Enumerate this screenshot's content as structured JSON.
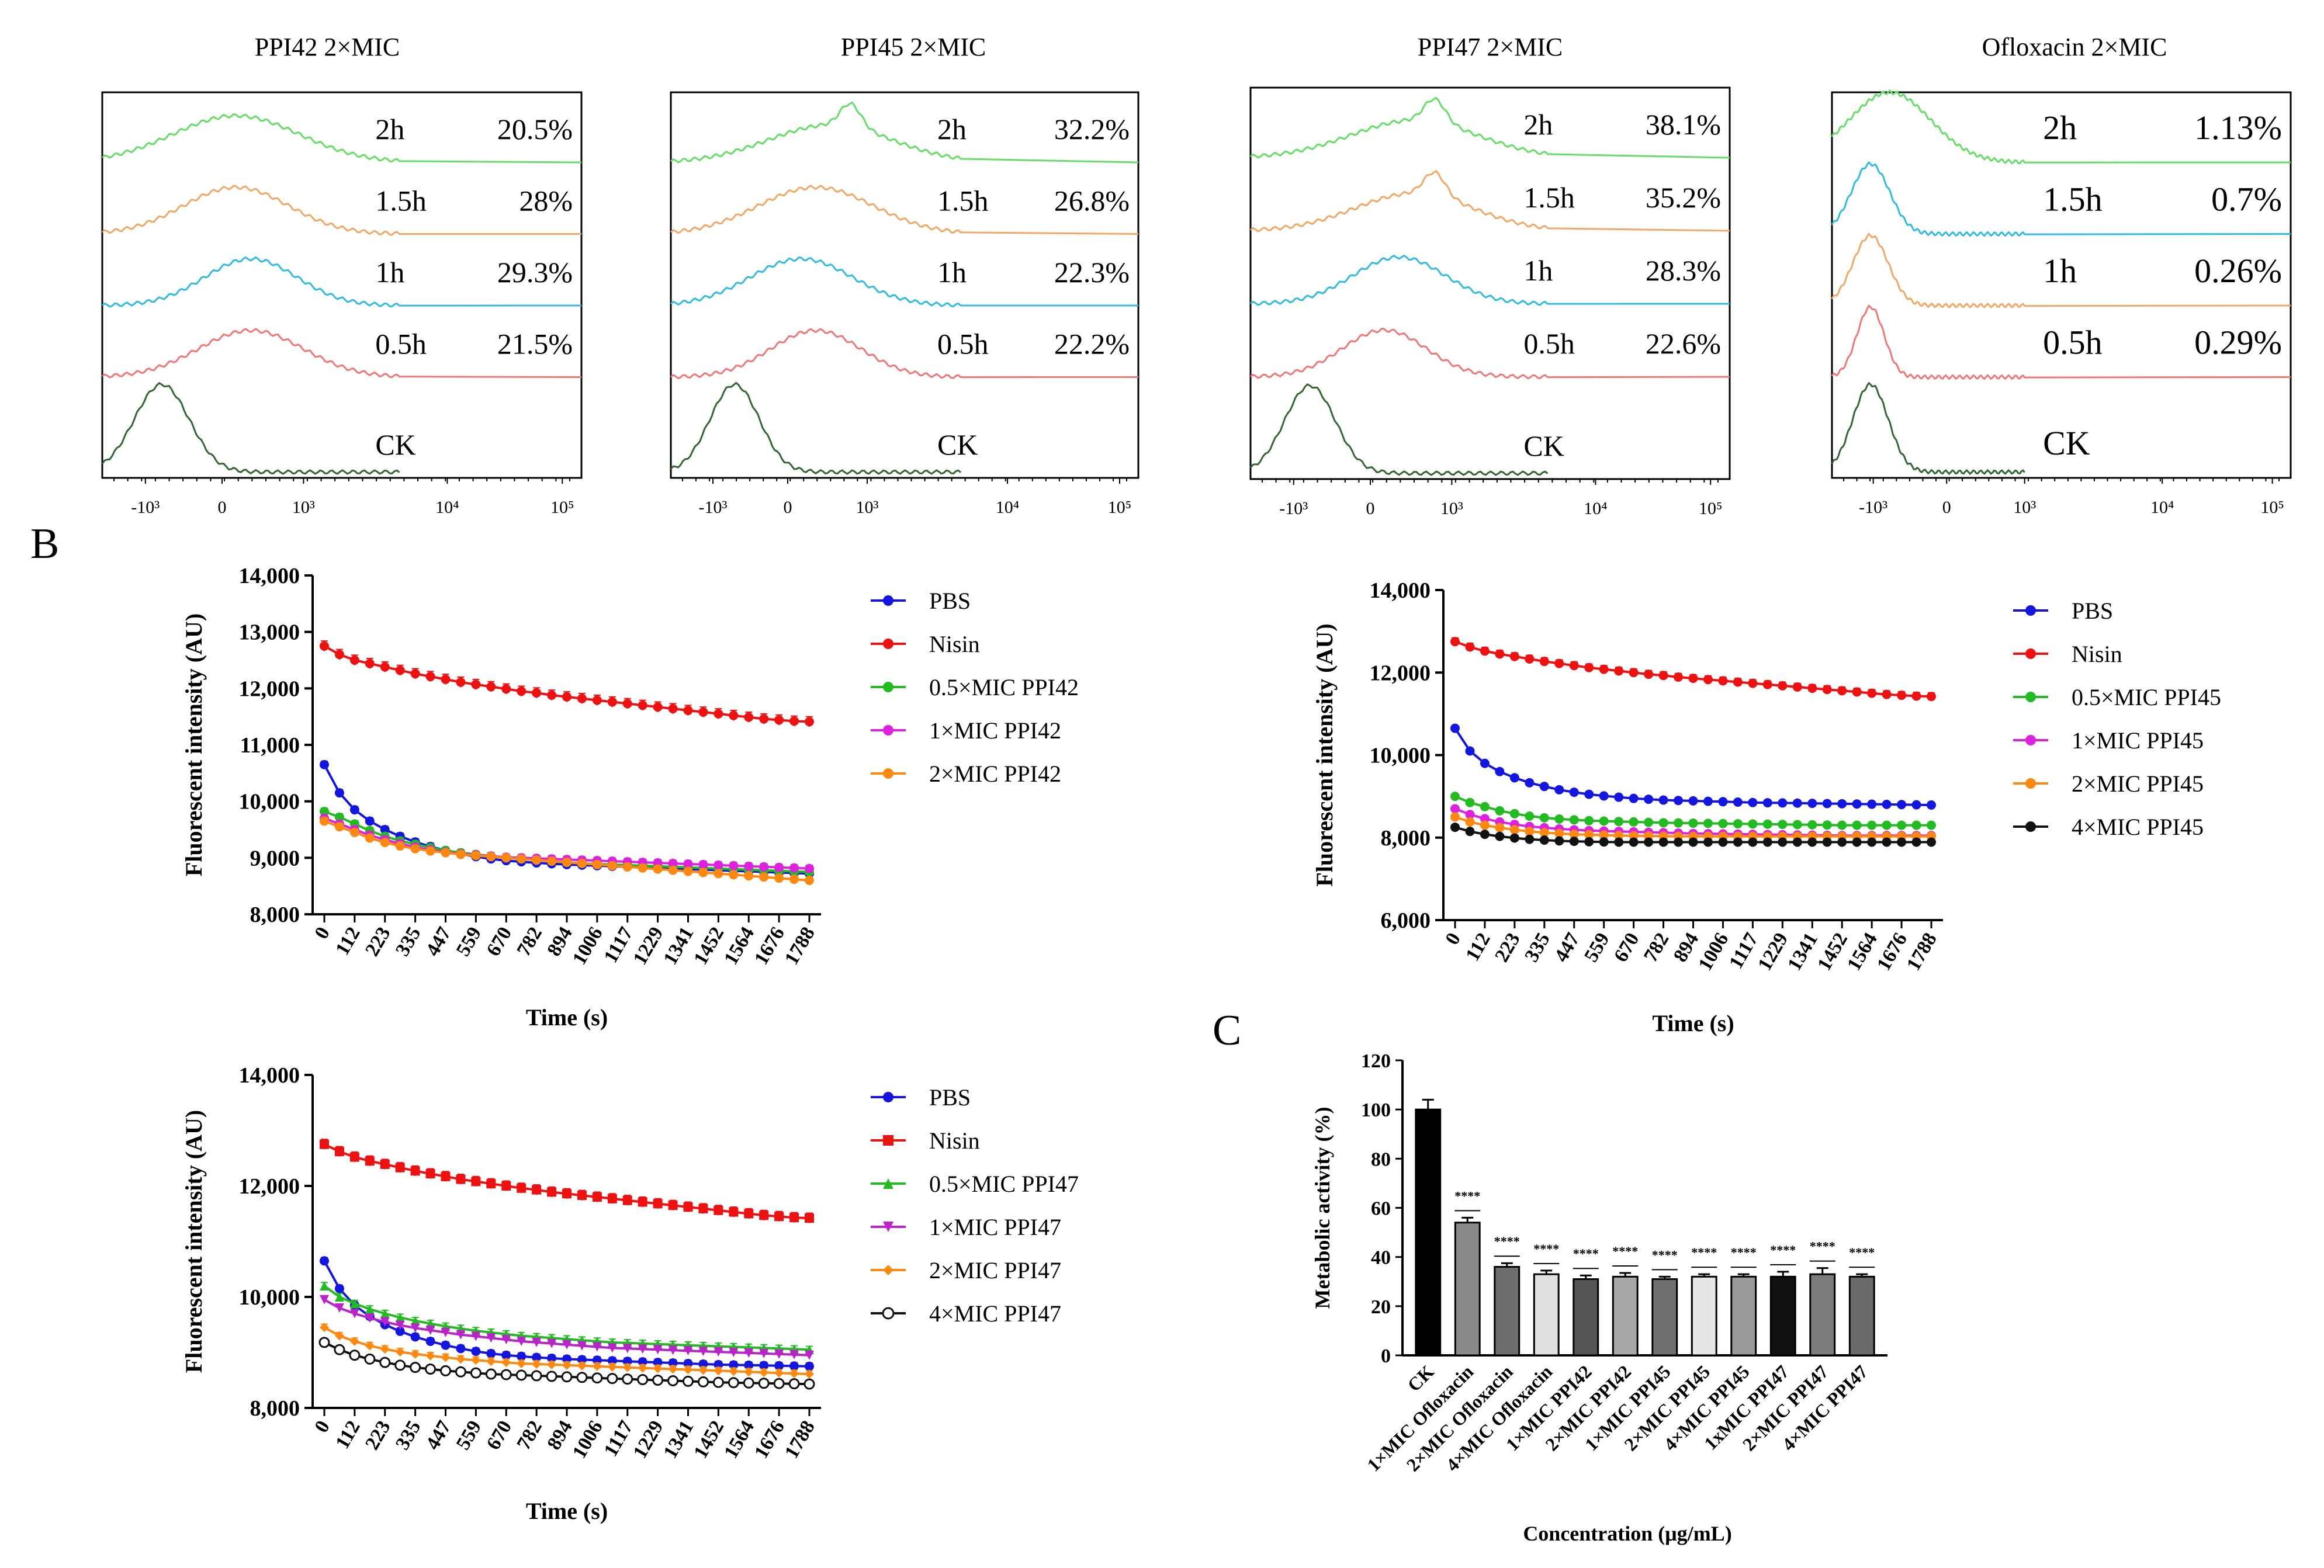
{
  "panel_b_label": "B",
  "panel_c_label": "C",
  "chart_data": [
    {
      "type": "histogram-overlay",
      "title": "PPI42  2×MIC",
      "x_ticks": [
        "-10³",
        "0",
        "10³",
        "10⁴",
        "10⁵"
      ],
      "traces": [
        {
          "label": "2h",
          "percent": "20.5%",
          "color": "#66dd66"
        },
        {
          "label": "1.5h",
          "percent": "28%",
          "color": "#f0a868"
        },
        {
          "label": "1h",
          "percent": "29.3%",
          "color": "#33bbdd"
        },
        {
          "label": "0.5h",
          "percent": "21.5%",
          "color": "#ee7777"
        },
        {
          "label": "CK",
          "percent": "",
          "color": "#336633"
        }
      ]
    },
    {
      "type": "histogram-overlay",
      "title": "PPI45  2×MIC",
      "x_ticks": [
        "-10³",
        "0",
        "10³",
        "10⁴",
        "10⁵"
      ],
      "traces": [
        {
          "label": "2h",
          "percent": "32.2%",
          "color": "#66dd66"
        },
        {
          "label": "1.5h",
          "percent": "26.8%",
          "color": "#f0a868"
        },
        {
          "label": "1h",
          "percent": "22.3%",
          "color": "#33bbdd"
        },
        {
          "label": "0.5h",
          "percent": "22.2%",
          "color": "#ee7777"
        },
        {
          "label": "CK",
          "percent": "",
          "color": "#336633"
        }
      ]
    },
    {
      "type": "histogram-overlay",
      "title": "PPI47  2×MIC",
      "x_ticks": [
        "-10³",
        "0",
        "10³",
        "10⁴",
        "10⁵"
      ],
      "traces": [
        {
          "label": "2h",
          "percent": "38.1%",
          "color": "#66dd66"
        },
        {
          "label": "1.5h",
          "percent": "35.2%",
          "color": "#f0a868"
        },
        {
          "label": "1h",
          "percent": "28.3%",
          "color": "#33bbdd"
        },
        {
          "label": "0.5h",
          "percent": "22.6%",
          "color": "#ee7777"
        },
        {
          "label": "CK",
          "percent": "",
          "color": "#336633"
        }
      ]
    },
    {
      "type": "histogram-overlay",
      "title": "Ofloxacin  2×MIC",
      "x_ticks": [
        "-10³",
        "0",
        "10³",
        "10⁴",
        "10⁵"
      ],
      "traces": [
        {
          "label": "2h",
          "percent": "1.13%",
          "color": "#66dd66"
        },
        {
          "label": "1.5h",
          "percent": "0.7%",
          "color": "#33bbdd"
        },
        {
          "label": "1h",
          "percent": "0.26%",
          "color": "#f0a868"
        },
        {
          "label": "0.5h",
          "percent": "0.29%",
          "color": "#ee7777"
        },
        {
          "label": "CK",
          "percent": "",
          "color": "#336633"
        }
      ]
    },
    {
      "type": "line",
      "xlabel": "Time (s)",
      "ylabel": "Fluorescent intensity (AU)",
      "ylim": [
        8000,
        14000
      ],
      "y_ticks": [
        "8,000",
        "9,000",
        "10,000",
        "11,000",
        "12,000",
        "13,000",
        "14,000"
      ],
      "x_ticks": [
        "0",
        "112",
        "223",
        "335",
        "447",
        "559",
        "670",
        "782",
        "894",
        "1006",
        "1117",
        "1229",
        "1341",
        "1452",
        "1564",
        "1676",
        "1788"
      ],
      "series": [
        {
          "name": "PBS",
          "color": "#1515e0",
          "marker": "circle",
          "values": [
            10650,
            10150,
            9850,
            9650,
            9500,
            9380,
            9280,
            9200,
            9130,
            9070,
            9020,
            8980,
            8950,
            8930,
            8910,
            8895,
            8880,
            8870,
            8860,
            8850,
            8840,
            8830,
            8820,
            8810,
            8800,
            8790,
            8780,
            8770,
            8760,
            8750,
            8740,
            8730,
            8720
          ]
        },
        {
          "name": "Nisin",
          "color": "#ee1111",
          "marker": "circle",
          "values": [
            12750,
            12600,
            12500,
            12440,
            12380,
            12320,
            12260,
            12210,
            12160,
            12110,
            12070,
            12030,
            11990,
            11950,
            11920,
            11880,
            11850,
            11820,
            11790,
            11760,
            11730,
            11700,
            11670,
            11640,
            11610,
            11580,
            11550,
            11520,
            11490,
            11460,
            11440,
            11420,
            11410
          ]
        },
        {
          "name": "0.5×MIC PPI42",
          "color": "#22bb22",
          "marker": "circle",
          "values": [
            9820,
            9720,
            9600,
            9480,
            9380,
            9300,
            9240,
            9180,
            9130,
            9090,
            9060,
            9030,
            9000,
            8980,
            8960,
            8940,
            8920,
            8900,
            8890,
            8880,
            8870,
            8860,
            8850,
            8840,
            8830,
            8820,
            8810,
            8800,
            8790,
            8780,
            8770,
            8760,
            8750
          ]
        },
        {
          "name": "1×MIC PPI42",
          "color": "#dd22dd",
          "marker": "circle",
          "values": [
            9700,
            9600,
            9500,
            9400,
            9320,
            9250,
            9190,
            9140,
            9100,
            9070,
            9050,
            9030,
            9010,
            9000,
            8990,
            8980,
            8970,
            8960,
            8950,
            8940,
            8930,
            8920,
            8910,
            8900,
            8890,
            8880,
            8870,
            8860,
            8850,
            8840,
            8830,
            8820,
            8810
          ]
        },
        {
          "name": "2×MIC PPI42",
          "color": "#ff8811",
          "marker": "circle",
          "values": [
            9650,
            9550,
            9450,
            9350,
            9270,
            9210,
            9160,
            9120,
            9090,
            9060,
            9040,
            9020,
            9000,
            8980,
            8960,
            8940,
            8920,
            8900,
            8880,
            8860,
            8840,
            8820,
            8800,
            8780,
            8760,
            8740,
            8720,
            8700,
            8680,
            8660,
            8640,
            8620,
            8600
          ]
        }
      ]
    },
    {
      "type": "line",
      "xlabel": "Time (s)",
      "ylabel": "Fluorescent intensity (AU)",
      "ylim": [
        6000,
        14000
      ],
      "y_ticks": [
        "6,000",
        "8,000",
        "10,000",
        "12,000",
        "14,000"
      ],
      "x_ticks": [
        "0",
        "112",
        "223",
        "335",
        "447",
        "559",
        "670",
        "782",
        "894",
        "1006",
        "1117",
        "1229",
        "1341",
        "1452",
        "1564",
        "1676",
        "1788"
      ],
      "series": [
        {
          "name": "PBS",
          "color": "#1515e0",
          "marker": "circle",
          "values": [
            10650,
            10100,
            9800,
            9600,
            9450,
            9330,
            9240,
            9160,
            9100,
            9050,
            9010,
            8980,
            8950,
            8930,
            8910,
            8900,
            8890,
            8880,
            8870,
            8860,
            8850,
            8845,
            8840,
            8835,
            8830,
            8825,
            8820,
            8815,
            8810,
            8805,
            8800,
            8795,
            8790
          ]
        },
        {
          "name": "Nisin",
          "color": "#ee1111",
          "marker": "circle",
          "values": [
            12750,
            12620,
            12520,
            12450,
            12390,
            12330,
            12270,
            12220,
            12170,
            12120,
            12080,
            12040,
            12000,
            11960,
            11930,
            11890,
            11860,
            11830,
            11800,
            11770,
            11740,
            11710,
            11680,
            11650,
            11620,
            11590,
            11560,
            11530,
            11500,
            11470,
            11450,
            11430,
            11420
          ]
        },
        {
          "name": "0.5×MIC PPI45",
          "color": "#22bb22",
          "marker": "circle",
          "values": [
            9000,
            8850,
            8750,
            8650,
            8580,
            8520,
            8480,
            8450,
            8430,
            8410,
            8400,
            8390,
            8380,
            8370,
            8360,
            8355,
            8350,
            8345,
            8340,
            8335,
            8330,
            8325,
            8320,
            8315,
            8310,
            8305,
            8300,
            8300,
            8300,
            8300,
            8300,
            8300,
            8300
          ]
        },
        {
          "name": "1×MIC PPI45",
          "color": "#dd22dd",
          "marker": "circle",
          "values": [
            8700,
            8560,
            8460,
            8380,
            8320,
            8270,
            8240,
            8210,
            8190,
            8170,
            8160,
            8150,
            8140,
            8130,
            8120,
            8110,
            8100,
            8095,
            8090,
            8085,
            8080,
            8075,
            8070,
            8065,
            8060,
            8055,
            8050,
            8050,
            8050,
            8050,
            8050,
            8050,
            8050
          ]
        },
        {
          "name": "2×MIC PPI45",
          "color": "#ff8811",
          "marker": "circle",
          "values": [
            8500,
            8380,
            8300,
            8240,
            8190,
            8150,
            8120,
            8100,
            8080,
            8070,
            8060,
            8050,
            8045,
            8040,
            8035,
            8030,
            8030,
            8030,
            8030,
            8030,
            8030,
            8030,
            8030,
            8030,
            8030,
            8030,
            8030,
            8030,
            8030,
            8030,
            8030,
            8030,
            8030
          ]
        },
        {
          "name": "4×MIC PPI45",
          "color": "#111111",
          "marker": "circle",
          "values": [
            8250,
            8150,
            8080,
            8030,
            7990,
            7960,
            7940,
            7920,
            7910,
            7900,
            7895,
            7890,
            7890,
            7890,
            7890,
            7890,
            7890,
            7890,
            7890,
            7890,
            7890,
            7890,
            7890,
            7890,
            7890,
            7890,
            7890,
            7890,
            7890,
            7890,
            7890,
            7890,
            7890
          ]
        }
      ]
    },
    {
      "type": "line",
      "xlabel": "Time (s)",
      "ylabel": "Fluorescent intensity (AU)",
      "ylim": [
        8000,
        14000
      ],
      "y_ticks": [
        "8,000",
        "10,000",
        "12,000",
        "14,000"
      ],
      "x_ticks": [
        "0",
        "112",
        "223",
        "335",
        "447",
        "559",
        "670",
        "782",
        "894",
        "1006",
        "1117",
        "1229",
        "1341",
        "1452",
        "1564",
        "1676",
        "1788"
      ],
      "series": [
        {
          "name": "PBS",
          "color": "#1515e0",
          "marker": "circle",
          "values": [
            10650,
            10150,
            9850,
            9650,
            9500,
            9380,
            9280,
            9200,
            9130,
            9070,
            9020,
            8980,
            8950,
            8930,
            8910,
            8895,
            8880,
            8870,
            8860,
            8850,
            8840,
            8830,
            8820,
            8810,
            8800,
            8790,
            8780,
            8775,
            8770,
            8765,
            8760,
            8755,
            8750
          ]
        },
        {
          "name": "Nisin",
          "color": "#ee1111",
          "marker": "square",
          "values": [
            12750,
            12620,
            12520,
            12450,
            12390,
            12330,
            12270,
            12220,
            12170,
            12120,
            12080,
            12040,
            12000,
            11960,
            11930,
            11890,
            11860,
            11830,
            11800,
            11770,
            11740,
            11710,
            11680,
            11650,
            11620,
            11590,
            11560,
            11530,
            11500,
            11470,
            11450,
            11430,
            11420
          ]
        },
        {
          "name": "0.5×MIC PPI47",
          "color": "#22bb22",
          "marker": "triangle",
          "values": [
            10200,
            10000,
            9880,
            9780,
            9700,
            9630,
            9570,
            9520,
            9470,
            9430,
            9390,
            9360,
            9330,
            9300,
            9280,
            9260,
            9240,
            9220,
            9200,
            9180,
            9170,
            9160,
            9150,
            9140,
            9130,
            9120,
            9110,
            9100,
            9090,
            9080,
            9070,
            9060,
            9050
          ]
        },
        {
          "name": "1×MIC PPI47",
          "color": "#bb22cc",
          "marker": "triangle-down",
          "values": [
            9950,
            9800,
            9700,
            9620,
            9550,
            9490,
            9440,
            9400,
            9360,
            9320,
            9290,
            9260,
            9230,
            9200,
            9180,
            9160,
            9140,
            9120,
            9100,
            9080,
            9070,
            9060,
            9050,
            9040,
            9030,
            9020,
            9010,
            9000,
            8990,
            8980,
            8970,
            8960,
            8950
          ]
        },
        {
          "name": "2×MIC PPI47",
          "color": "#ff8811",
          "marker": "diamond",
          "values": [
            9450,
            9300,
            9200,
            9120,
            9060,
            9010,
            8970,
            8940,
            8910,
            8880,
            8860,
            8840,
            8820,
            8800,
            8790,
            8780,
            8770,
            8760,
            8750,
            8740,
            8730,
            8720,
            8710,
            8700,
            8690,
            8680,
            8670,
            8660,
            8650,
            8640,
            8630,
            8620,
            8610
          ]
        },
        {
          "name": "4×MIC PPI47",
          "color": "#111111",
          "marker": "open-circle",
          "values": [
            9180,
            9050,
            8950,
            8880,
            8820,
            8770,
            8730,
            8700,
            8670,
            8650,
            8630,
            8610,
            8600,
            8590,
            8580,
            8570,
            8560,
            8550,
            8540,
            8530,
            8520,
            8510,
            8500,
            8490,
            8480,
            8470,
            8460,
            8455,
            8450,
            8445,
            8440,
            8435,
            8430
          ]
        }
      ]
    },
    {
      "type": "bar",
      "xlabel": "Concentration (μg/mL)",
      "ylabel": "Metabolic activity (%)",
      "ylim": [
        0,
        120
      ],
      "y_ticks": [
        "0",
        "20",
        "40",
        "60",
        "80",
        "100",
        "120"
      ],
      "categories": [
        "CK",
        "1×MIC Ofloxacin",
        "2×MIC Ofloxacin",
        "4×MIC Ofloxacin",
        "1×MIC PPI42",
        "2×MIC PPI42",
        "1×MIC PPI45",
        "2×MIC PPI45",
        "4×MIC PPI45",
        "1xMIC PPI47",
        "2×MIC PPI47",
        "4×MIC PPI47"
      ],
      "values": [
        100,
        54,
        36,
        33,
        31,
        32,
        31,
        32,
        32,
        32,
        33,
        32
      ],
      "errors": [
        4,
        2,
        1.5,
        1.5,
        1.5,
        1.5,
        1,
        1,
        1,
        2,
        2.5,
        1
      ],
      "significance": [
        "",
        "****",
        "****",
        "****",
        "****",
        "****",
        "****",
        "****",
        "****",
        "****",
        "****",
        "****"
      ],
      "bar_colors": [
        "#000000",
        "#8a8a8a",
        "#6e6e6e",
        "#e0e0e0",
        "#555555",
        "#a8a8a8",
        "#707070",
        "#e6e6e6",
        "#9a9a9a",
        "#111111",
        "#7c7c7c",
        "#6a6a6a"
      ]
    }
  ]
}
